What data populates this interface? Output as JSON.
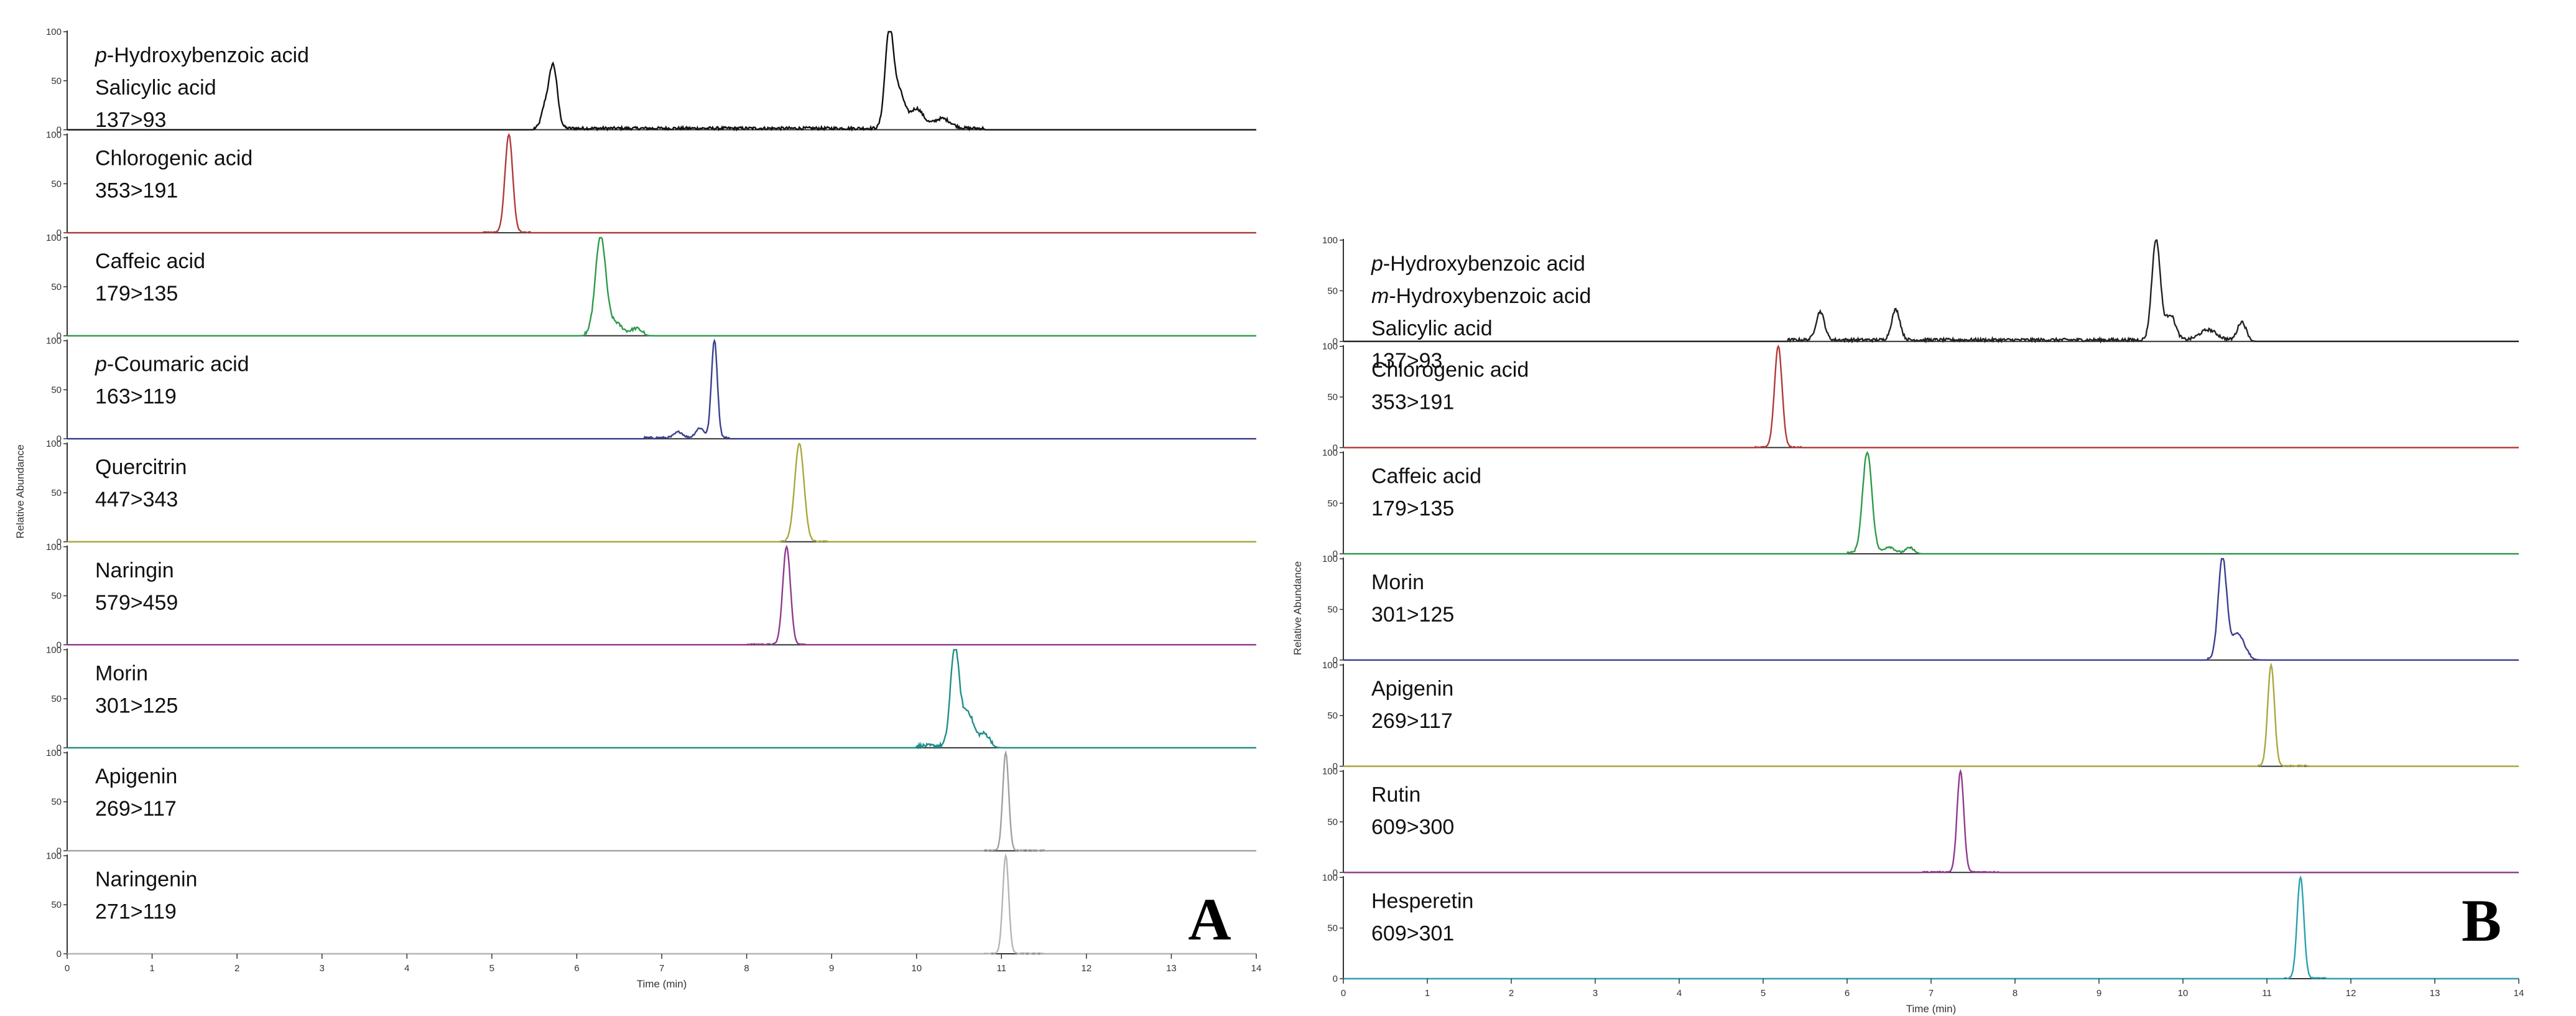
{
  "chart_data": [
    {
      "type": "line",
      "panel": "A",
      "panel_label": "A",
      "xlabel": "Time (min)",
      "ylabel": "Relative Abundance",
      "xlim": [
        0,
        14
      ],
      "ylim": [
        0,
        100
      ],
      "x_ticks": [
        "0",
        "1",
        "2",
        "3",
        "4",
        "5",
        "6",
        "7",
        "8",
        "9",
        "10",
        "11",
        "12",
        "13",
        "14"
      ],
      "y_ticks": [
        "0",
        "50",
        "100"
      ],
      "traces": [
        {
          "lines": [
            {
              "text": "p",
              "italic": true,
              "rest": "-Hydroxybenzoic acid"
            },
            {
              "text": "Salicylic acid"
            },
            {
              "text": "137>93"
            }
          ],
          "color": "#111111",
          "peaks": [
            {
              "t": 5.72,
              "h": 65,
              "w": 0.05
            },
            {
              "t": 5.62,
              "h": 18,
              "w": 0.04
            },
            {
              "t": 9.68,
              "h": 100,
              "w": 0.05
            },
            {
              "t": 9.8,
              "h": 35,
              "w": 0.06
            },
            {
              "t": 10.0,
              "h": 20,
              "w": 0.08
            },
            {
              "t": 10.3,
              "h": 10,
              "w": 0.1
            }
          ],
          "noise": {
            "from": 5.5,
            "to": 10.8,
            "level": 3
          }
        },
        {
          "lines": [
            {
              "text": "Chlorogenic acid"
            },
            {
              "text": "353>191"
            }
          ],
          "color": "#b03a3a",
          "peaks": [
            {
              "t": 5.2,
              "h": 100,
              "w": 0.045
            }
          ],
          "noise": {
            "from": 4.9,
            "to": 5.45,
            "level": 1
          }
        },
        {
          "lines": [
            {
              "text": "Caffeic acid"
            },
            {
              "text": "179>135"
            }
          ],
          "color": "#2e9a4a",
          "peaks": [
            {
              "t": 6.28,
              "h": 100,
              "w": 0.06
            },
            {
              "t": 6.45,
              "h": 12,
              "w": 0.08
            },
            {
              "t": 6.7,
              "h": 6,
              "w": 0.06
            }
          ],
          "noise": {
            "from": 6.1,
            "to": 6.8,
            "level": 3
          }
        },
        {
          "lines": [
            {
              "text": "p",
              "italic": true,
              "rest": "-Coumaric acid"
            },
            {
              "text": "163>119"
            }
          ],
          "color": "#3a3f8f",
          "peaks": [
            {
              "t": 7.62,
              "h": 100,
              "w": 0.035
            },
            {
              "t": 7.45,
              "h": 10,
              "w": 0.05
            },
            {
              "t": 7.2,
              "h": 6,
              "w": 0.05
            }
          ],
          "noise": {
            "from": 6.8,
            "to": 7.8,
            "level": 2
          }
        },
        {
          "lines": [
            {
              "text": "Quercitrin"
            },
            {
              "text": "447>343"
            }
          ],
          "color": "#a8a83a",
          "peaks": [
            {
              "t": 8.62,
              "h": 100,
              "w": 0.055
            }
          ],
          "noise": {
            "from": 8.4,
            "to": 8.95,
            "level": 1
          }
        },
        {
          "lines": [
            {
              "text": "Naringin"
            },
            {
              "text": "579>459"
            }
          ],
          "color": "#8f3a8f",
          "peaks": [
            {
              "t": 8.47,
              "h": 100,
              "w": 0.045
            }
          ],
          "noise": {
            "from": 8.0,
            "to": 8.7,
            "level": 1
          }
        },
        {
          "lines": [
            {
              "text": "Morin"
            },
            {
              "text": "301>125"
            }
          ],
          "color": "#1f8f86",
          "peaks": [
            {
              "t": 10.45,
              "h": 100,
              "w": 0.05
            },
            {
              "t": 10.6,
              "h": 35,
              "w": 0.07
            },
            {
              "t": 10.8,
              "h": 12,
              "w": 0.06
            }
          ],
          "noise": {
            "from": 10.0,
            "to": 10.9,
            "level": 4
          }
        },
        {
          "lines": [
            {
              "text": "Apigenin"
            },
            {
              "text": "269>117"
            }
          ],
          "color": "#a0a0a0",
          "peaks": [
            {
              "t": 11.05,
              "h": 100,
              "w": 0.035
            }
          ],
          "noise": {
            "from": 10.8,
            "to": 11.5,
            "level": 1
          }
        },
        {
          "lines": [
            {
              "text": "Naringenin"
            },
            {
              "text": "271>119"
            }
          ],
          "color": "#b5b5b5",
          "peaks": [
            {
              "t": 11.05,
              "h": 100,
              "w": 0.035
            }
          ],
          "noise": {
            "from": 10.8,
            "to": 11.5,
            "level": 1
          }
        }
      ]
    },
    {
      "type": "line",
      "panel": "B",
      "panel_label": "B",
      "xlabel": "Time (min)",
      "ylabel": "Relative Abundance",
      "xlim": [
        0,
        14
      ],
      "ylim": [
        0,
        100
      ],
      "x_ticks": [
        "0",
        "1",
        "2",
        "3",
        "4",
        "5",
        "6",
        "7",
        "8",
        "9",
        "10",
        "11",
        "12",
        "13",
        "14"
      ],
      "y_ticks": [
        "0",
        "50",
        "100"
      ],
      "traces": [
        {
          "lines": [
            {
              "text": "p",
              "italic": true,
              "rest": "-Hydroxybenzoic acid"
            },
            {
              "text": "m",
              "italic": true,
              "rest": "-Hydroxybenzoic acid"
            },
            {
              "text": "Salicylic acid"
            },
            {
              "text": "137>93"
            }
          ],
          "color": "#222222",
          "peaks": [
            {
              "t": 5.68,
              "h": 28,
              "w": 0.05
            },
            {
              "t": 6.58,
              "h": 30,
              "w": 0.05
            },
            {
              "t": 9.68,
              "h": 100,
              "w": 0.05
            },
            {
              "t": 9.85,
              "h": 25,
              "w": 0.06
            },
            {
              "t": 10.7,
              "h": 18,
              "w": 0.05
            },
            {
              "t": 10.3,
              "h": 10,
              "w": 0.1
            }
          ],
          "noise": {
            "from": 5.3,
            "to": 10.8,
            "level": 3
          }
        },
        {
          "lines": [
            {
              "text": "Chlorogenic acid"
            },
            {
              "text": "353>191"
            }
          ],
          "color": "#b03a3a",
          "peaks": [
            {
              "t": 5.18,
              "h": 100,
              "w": 0.045
            }
          ],
          "noise": {
            "from": 4.9,
            "to": 5.45,
            "level": 1
          }
        },
        {
          "lines": [
            {
              "text": "Caffeic acid"
            },
            {
              "text": "179>135"
            }
          ],
          "color": "#2e9a4a",
          "peaks": [
            {
              "t": 6.24,
              "h": 100,
              "w": 0.055
            },
            {
              "t": 6.5,
              "h": 6,
              "w": 0.06
            },
            {
              "t": 6.75,
              "h": 5,
              "w": 0.05
            }
          ],
          "noise": {
            "from": 6.0,
            "to": 6.8,
            "level": 2
          }
        },
        {
          "lines": [
            {
              "text": "Morin"
            },
            {
              "text": "301>125"
            }
          ],
          "color": "#3a3f8f",
          "peaks": [
            {
              "t": 10.47,
              "h": 100,
              "w": 0.05
            },
            {
              "t": 10.65,
              "h": 25,
              "w": 0.08
            }
          ],
          "noise": {
            "from": 10.3,
            "to": 10.8,
            "level": 2
          }
        },
        {
          "lines": [
            {
              "text": "Apigenin"
            },
            {
              "text": "269>117"
            }
          ],
          "color": "#a8a83a",
          "peaks": [
            {
              "t": 11.05,
              "h": 100,
              "w": 0.04
            }
          ],
          "noise": {
            "from": 10.9,
            "to": 11.5,
            "level": 1
          }
        },
        {
          "lines": [
            {
              "text": "Rutin"
            },
            {
              "text": "609>300"
            }
          ],
          "color": "#8f3a8f",
          "peaks": [
            {
              "t": 7.35,
              "h": 100,
              "w": 0.04
            }
          ],
          "noise": {
            "from": 6.9,
            "to": 7.8,
            "level": 1
          }
        },
        {
          "lines": [
            {
              "text": "Hesperetin"
            },
            {
              "text": "609>301"
            }
          ],
          "color": "#2aa0b0",
          "peaks": [
            {
              "t": 11.4,
              "h": 100,
              "w": 0.04
            }
          ],
          "noise": {
            "from": 11.2,
            "to": 11.7,
            "level": 1
          }
        }
      ]
    }
  ]
}
